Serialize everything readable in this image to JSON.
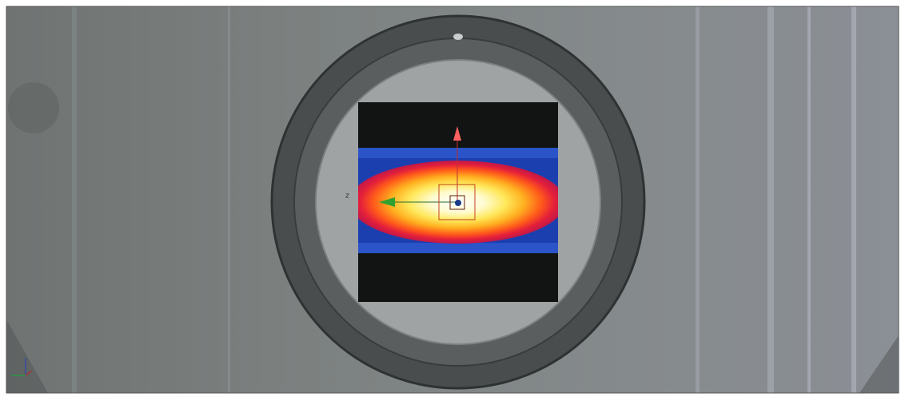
{
  "viewport": {
    "axis_label": "z"
  }
}
